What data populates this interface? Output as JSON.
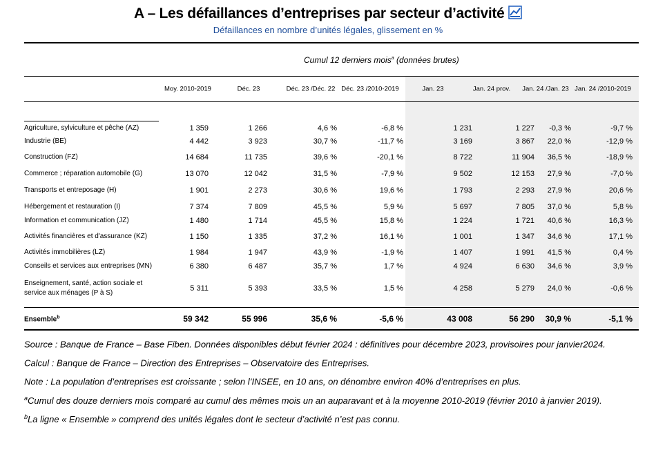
{
  "header": {
    "title": "A – Les défaillances d’entreprises par secteur d’activité",
    "subtitle": "Défaillances en nombre d’unités légales, glissement en %"
  },
  "table": {
    "group_header": {
      "text": "Cumul 12 derniers mois",
      "marker": "a",
      "suffix": "(données brutes)"
    },
    "columns": [
      "Moy. 2010-2019",
      "Déc. 23",
      "Déc. 23 /Déc. 22",
      "Déc. 23 /2010-2019",
      "Jan. 23",
      "Jan. 24 prov.",
      "Jan. 24 /Jan. 23",
      "Jan. 24 /2010-2019"
    ],
    "rows": [
      {
        "label": "Agriculture, sylviculture et pêche (AZ)",
        "cells": [
          "1 359",
          "1 266",
          "4,6 %",
          "-6,8 %",
          "1 231",
          "1 227",
          "-0,3 %",
          "-9,7 %"
        ]
      },
      {
        "label": "Industrie (BE)",
        "cells": [
          "4 442",
          "3 923",
          "30,7 %",
          "-11,7 %",
          "3 169",
          "3 867",
          "22,0 %",
          "-12,9 %"
        ]
      },
      {
        "label": "Construction (FZ)",
        "cells": [
          "14 684",
          "11 735",
          "39,6 %",
          "-20,1 %",
          "8 722",
          "11 904",
          "36,5 %",
          "-18,9 %"
        ]
      },
      {
        "label": "Commerce ; réparation automobile (G)",
        "cells": [
          "13 070",
          "12 042",
          "31,5 %",
          "-7,9 %",
          "9 502",
          "12 153",
          "27,9 %",
          "-7,0 %"
        ]
      },
      {
        "label": "Transports et entreposage (H)",
        "cells": [
          "1 901",
          "2 273",
          "30,6 %",
          "19,6 %",
          "1 793",
          "2 293",
          "27,9 %",
          "20,6 %"
        ]
      },
      {
        "label": "Hébergement et restauration (I)",
        "cells": [
          "7 374",
          "7 809",
          "45,5 %",
          "5,9 %",
          "5 697",
          "7 805",
          "37,0 %",
          "5,8 %"
        ]
      },
      {
        "label": "Information et communication (JZ)",
        "cells": [
          "1 480",
          "1 714",
          "45,5 %",
          "15,8 %",
          "1 224",
          "1 721",
          "40,6 %",
          "16,3 %"
        ]
      },
      {
        "label": "Activités financières et d'assurance (KZ)",
        "cells": [
          "1 150",
          "1 335",
          "37,2 %",
          "16,1 %",
          "1 001",
          "1 347",
          "34,6 %",
          "17,1 %"
        ]
      },
      {
        "label": "Activités immobilières (LZ)",
        "cells": [
          "1 984",
          "1 947",
          "43,9 %",
          "-1,9 %",
          "1 407",
          "1 991",
          "41,5 %",
          "0,4 %"
        ]
      },
      {
        "label": "Conseils et services aux entreprises (MN)",
        "cells": [
          "6 380",
          "6 487",
          "35,7 %",
          "1,7 %",
          "4 924",
          "6 630",
          "34,6 %",
          "3,9 %"
        ]
      },
      {
        "label": "Enseignement, santé, action sociale et\nservice aux ménages (P à S)",
        "cells": [
          "5 311",
          "5 393",
          "33,5 %",
          "1,5 %",
          "4 258",
          "5 279",
          "24,0 %",
          "-0,6 %"
        ]
      }
    ],
    "total": {
      "label": "Ensemble",
      "marker": "b",
      "cells": [
        "59 342",
        "55 996",
        "35,6 %",
        "-5,6 %",
        "43 008",
        "56 290",
        "30,9 %",
        "-5,1 %"
      ]
    }
  },
  "notes": [
    {
      "text": "Source : Banque de France – Base Fiben. Données disponibles début février 2024 : définitives pour décembre 2023, provisoires pour janvier2024."
    },
    {
      "text": "Calcul : Banque de France – Direction des Entreprises – Observatoire des Entreprises."
    },
    {
      "text": "Note : La population d’entreprises est croissante ; selon l’INSEE, en 10 ans, on dénombre environ 40% d’entreprises en plus."
    },
    {
      "marker": "a",
      "text": "Cumul des douze derniers mois comparé au cumul des mêmes mois un an auparavant et à la moyenne 2010-2019 (février 2010 à janvier 2019)."
    },
    {
      "marker": "b",
      "text": "La ligne « Ensemble » comprend des unités légales dont le secteur d’activité n’est pas connu."
    }
  ]
}
